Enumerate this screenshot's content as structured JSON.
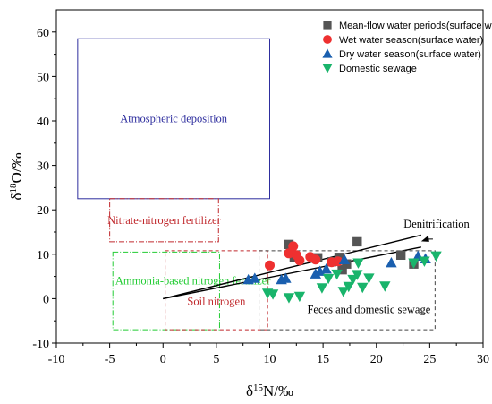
{
  "chart_data": {
    "type": "scatter",
    "xlim": [
      -10,
      30
    ],
    "ylim": [
      -10,
      65
    ],
    "x_ticks": [
      "-10",
      "-5",
      "0",
      "5",
      "10",
      "15",
      "20",
      "25",
      "30"
    ],
    "y_ticks": [
      "-10",
      "0",
      "10",
      "20",
      "30",
      "40",
      "50",
      "60"
    ],
    "x_tick_values": [
      -10,
      -5,
      0,
      5,
      10,
      15,
      20,
      25,
      30
    ],
    "y_tick_values": [
      -10,
      0,
      10,
      20,
      30,
      40,
      50,
      60
    ],
    "xlabel": {
      "pre": "δ",
      "sup": "15",
      "post": "N/‰"
    },
    "ylabel": {
      "pre": "δ",
      "sup": "18",
      "post": "O/‰"
    },
    "grid": false,
    "legend_position": "top-right",
    "series": [
      {
        "name": "Mean-flow water periods(surface water)",
        "marker": "square",
        "color": "#555555",
        "points": [
          [
            11.8,
            12.2
          ],
          [
            12.3,
            9.2
          ],
          [
            14.5,
            9.2
          ],
          [
            15.8,
            8.3
          ],
          [
            16.5,
            9.3
          ],
          [
            17.2,
            7.8
          ],
          [
            16.8,
            6.5
          ],
          [
            18.2,
            12.8
          ],
          [
            22.3,
            9.8
          ],
          [
            23.5,
            7.8
          ]
        ]
      },
      {
        "name": "Wet water season(surface water)",
        "marker": "circle",
        "color": "#ee3030",
        "points": [
          [
            10.0,
            7.5
          ],
          [
            11.8,
            10.2
          ],
          [
            12.2,
            11.8
          ],
          [
            12.5,
            9.8
          ],
          [
            12.8,
            8.6
          ],
          [
            13.8,
            9.4
          ],
          [
            14.3,
            8.8
          ],
          [
            15.8,
            8.2
          ],
          [
            16.4,
            8.4
          ]
        ]
      },
      {
        "name": "Dry water season(surface water)",
        "marker": "triangle-up",
        "color": "#1a5faf",
        "points": [
          [
            8.0,
            4.3
          ],
          [
            8.6,
            4.6
          ],
          [
            11.1,
            4.3
          ],
          [
            11.5,
            4.6
          ],
          [
            14.3,
            5.6
          ],
          [
            14.7,
            6.2
          ],
          [
            15.3,
            6.7
          ],
          [
            17.0,
            8.8
          ],
          [
            21.4,
            8.1
          ],
          [
            23.9,
            9.6
          ],
          [
            24.6,
            9.0
          ]
        ]
      },
      {
        "name": "Domestic sewage",
        "marker": "triangle-down",
        "color": "#19b46b",
        "points": [
          [
            9.8,
            1.2
          ],
          [
            10.3,
            1.0
          ],
          [
            11.8,
            0.2
          ],
          [
            12.8,
            0.5
          ],
          [
            14.9,
            2.4
          ],
          [
            15.5,
            4.5
          ],
          [
            16.3,
            5.5
          ],
          [
            16.9,
            1.6
          ],
          [
            17.4,
            2.7
          ],
          [
            17.8,
            4.3
          ],
          [
            18.2,
            5.4
          ],
          [
            18.3,
            8.0
          ],
          [
            18.7,
            2.5
          ],
          [
            19.3,
            4.6
          ],
          [
            20.8,
            2.8
          ],
          [
            23.5,
            8.0
          ],
          [
            24.5,
            8.4
          ],
          [
            25.6,
            9.6
          ]
        ]
      }
    ],
    "regions": [
      {
        "label": "Atmospheric deposition",
        "x": [
          -8,
          10
        ],
        "y": [
          22.5,
          58.5
        ],
        "style": "solid",
        "color": "#2e2e9e"
      },
      {
        "label": "Nitrate-nitrogen fertilizer",
        "x": [
          -5,
          5.2
        ],
        "y": [
          12.8,
          22.5
        ],
        "style": "dashdot",
        "color": "#c0282c"
      },
      {
        "label": "Ammonia-based nitrogen fertilizer",
        "x": [
          -4.7,
          5.3
        ],
        "y": [
          -7,
          10.5
        ],
        "style": "dashdot",
        "color": "#22cc33"
      },
      {
        "label": "Soil nitrogen",
        "x": [
          0.2,
          9.8
        ],
        "y": [
          -7,
          10.8
        ],
        "style": "dash",
        "color": "#c0282c"
      },
      {
        "label": "Feces and domestic sewage",
        "x": [
          9,
          25.5
        ],
        "y": [
          -7,
          10.8
        ],
        "style": "dash",
        "color": "#444444"
      }
    ],
    "lines": [
      {
        "x": [
          0,
          24.2
        ],
        "y": [
          0,
          14.3
        ]
      },
      {
        "x": [
          0,
          24.2
        ],
        "y": [
          0,
          11.6
        ]
      }
    ],
    "annotation": {
      "text": "Denitrification",
      "arrow_from": [
        25.3,
        13.4
      ],
      "arrow_to": [
        24.2,
        12.9
      ]
    }
  }
}
